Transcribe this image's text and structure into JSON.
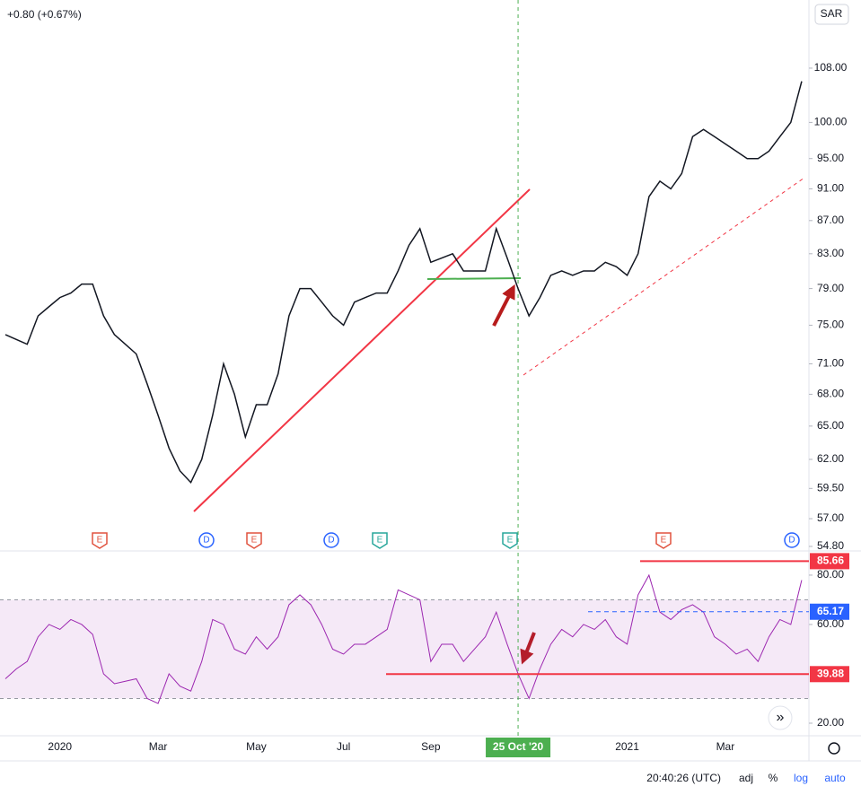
{
  "header": {
    "change": "+0.80 (+0.67%)",
    "currency": "SAR"
  },
  "chart_data": [
    {
      "type": "line",
      "scale": "log",
      "color": "#131722",
      "categories": [
        null,
        null,
        null,
        null,
        null,
        "2020",
        null,
        null,
        null,
        null,
        null,
        null,
        null,
        null,
        "Mar",
        null,
        null,
        null,
        null,
        null,
        null,
        null,
        null,
        "May",
        null,
        null,
        null,
        null,
        null,
        null,
        null,
        "Jul",
        null,
        null,
        null,
        null,
        null,
        null,
        null,
        "Sep",
        null,
        null,
        null,
        null,
        null,
        null,
        null,
        "25 Oct '20",
        null,
        null,
        null,
        null,
        null,
        null,
        null,
        null,
        null,
        "2021",
        null,
        null,
        null,
        null,
        null,
        null,
        null,
        null,
        "Mar",
        null,
        null,
        null,
        null,
        null,
        null,
        null
      ],
      "crosshair_at": "25 Oct '20",
      "crosshair_color": "#4caf50",
      "values": [
        74,
        73.5,
        73,
        76,
        77,
        78,
        78.5,
        79.5,
        79.5,
        76,
        74,
        73,
        72,
        69,
        66,
        63,
        61,
        60,
        62,
        66,
        71,
        68,
        64,
        67,
        67,
        70,
        76,
        79,
        79,
        77.5,
        76,
        75,
        77.5,
        78,
        78.5,
        78.5,
        81,
        84,
        86,
        82,
        82.5,
        83,
        81,
        81,
        81,
        86,
        82.5,
        79,
        76,
        78,
        80.5,
        81,
        80.5,
        81,
        81,
        82,
        81.5,
        80.5,
        83,
        90,
        92,
        91,
        93,
        98,
        99,
        98,
        97,
        96,
        95,
        95,
        96,
        98,
        100,
        106
      ],
      "ylim": [
        54.45,
        118.96
      ],
      "yticks": [
        {
          "value": 54.8,
          "label": "54.80"
        },
        {
          "value": 57,
          "label": "57.00"
        },
        {
          "value": 59.5,
          "label": "59.50"
        },
        {
          "value": 62,
          "label": "62.00"
        },
        {
          "value": 65,
          "label": "65.00"
        },
        {
          "value": 68,
          "label": "68.00"
        },
        {
          "value": 71,
          "label": "71.00"
        },
        {
          "value": 75,
          "label": "75.00"
        },
        {
          "value": 79,
          "label": "79.00"
        },
        {
          "value": 83,
          "label": "83.00"
        },
        {
          "value": 87,
          "label": "87.00"
        },
        {
          "value": 91,
          "label": "91.00"
        },
        {
          "value": 95,
          "label": "95.00"
        },
        {
          "value": 100,
          "label": "100.00"
        },
        {
          "value": 108,
          "label": "108.00"
        }
      ],
      "events": [
        {
          "label": "E",
          "color": "#e0523e"
        },
        {
          "label": "D",
          "color": "#2962ff"
        },
        {
          "label": "E",
          "color": "#e0523e"
        },
        {
          "label": "D",
          "color": "#2962ff"
        },
        {
          "label": "E",
          "color": "#26a69a"
        },
        {
          "label": "E",
          "color": "#26a69a"
        },
        {
          "label": "E",
          "color": "#e0523e"
        },
        {
          "label": "D",
          "color": "#2962ff"
        }
      ]
    },
    {
      "type": "line",
      "color": "#9c27b0",
      "values": [
        38,
        42,
        45,
        55,
        60,
        58,
        62,
        60,
        56,
        40,
        36,
        37,
        38,
        30,
        28,
        40,
        35,
        33,
        45,
        62,
        60,
        50,
        48,
        55,
        50,
        55,
        68,
        72,
        68,
        60,
        50,
        48,
        52,
        52,
        55,
        58,
        74,
        72,
        70,
        45,
        52,
        52,
        45,
        50,
        55,
        65,
        52,
        40,
        30,
        42,
        52,
        58,
        55,
        60,
        58,
        62,
        55,
        52,
        72,
        80,
        65,
        62,
        66,
        68,
        65,
        55,
        52,
        48,
        50,
        45,
        55,
        62,
        60,
        78
      ],
      "ylim": [
        14.9,
        89.8
      ],
      "yticks": [
        {
          "value": 20,
          "label": "20.00"
        },
        {
          "value": 60,
          "label": "60.00"
        },
        {
          "value": 80,
          "label": "80.00"
        }
      ],
      "band": [
        30,
        70
      ],
      "band_color": "rgba(156,39,176,0.1)",
      "levels": [
        {
          "value": 85.66,
          "color": "#f23645"
        },
        {
          "value": 65.17,
          "color": "#2962ff"
        },
        {
          "value": 39.88,
          "color": "#f23645"
        }
      ]
    }
  ],
  "status": {
    "time": "20:40:26 (UTC)",
    "adj": "adj",
    "percent": "%",
    "log": "log",
    "auto": "auto",
    "more": "»"
  }
}
